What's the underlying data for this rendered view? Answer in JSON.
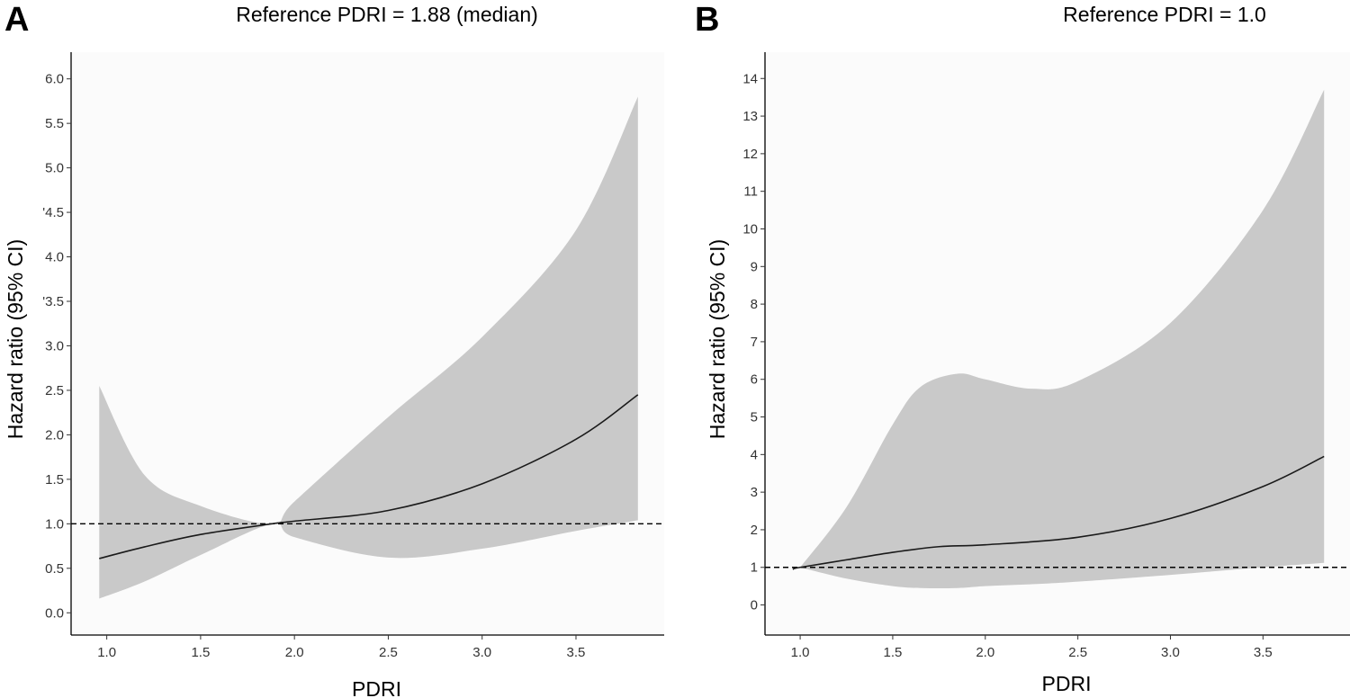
{
  "chart_data": [
    {
      "type": "line",
      "panel_label": "A",
      "title": "Reference PDRI = 1.88 (median)",
      "xlabel": "PDRI",
      "ylabel": "Hazard ratio (95% CI)",
      "xlim": [
        0.81,
        3.97
      ],
      "ylim": [
        -0.25,
        6.3
      ],
      "x_ticks": [
        1.0,
        1.5,
        2.0,
        2.5,
        3.0,
        3.5
      ],
      "x_tick_labels": [
        "1.0",
        "1.5",
        "2.0",
        "2.5",
        "3.0",
        "3.5"
      ],
      "y_ticks": [
        0.0,
        0.5,
        1.0,
        1.5,
        2.0,
        2.5,
        3.0,
        3.5,
        4.0,
        4.5,
        5.0,
        5.5,
        6.0
      ],
      "y_tick_labels": [
        "0.0",
        "0.5",
        "1.0",
        "1.5",
        "2.0",
        "2.5",
        "3.0",
        "'3.5",
        "4.0",
        "'4.5",
        "5.0",
        "5.5",
        "6.0"
      ],
      "reference_line": 1.0,
      "grid": false,
      "series": [
        {
          "kind": "line",
          "x": [
            0.96,
            1.2,
            1.5,
            1.88,
            2.0,
            2.5,
            3.0,
            3.5,
            3.83
          ],
          "y": [
            0.61,
            0.74,
            0.88,
            1.0,
            1.03,
            1.15,
            1.45,
            1.95,
            2.45
          ]
        },
        {
          "kind": "band",
          "x": [
            0.96,
            1.2,
            1.5,
            1.88,
            2.0,
            2.5,
            3.0,
            3.5,
            3.83
          ],
          "lower": [
            0.16,
            0.35,
            0.65,
            1.0,
            0.85,
            0.62,
            0.72,
            0.92,
            1.04
          ],
          "upper": [
            2.55,
            1.55,
            1.2,
            1.0,
            1.25,
            2.2,
            3.1,
            4.3,
            5.8
          ]
        }
      ]
    },
    {
      "type": "line",
      "panel_label": "B",
      "title": "Reference PDRI = 1.0",
      "xlabel": "PDRI",
      "ylabel": "Hazard ratio (95% CI)",
      "xlim": [
        0.81,
        3.97
      ],
      "ylim": [
        -0.8,
        14.7
      ],
      "x_ticks": [
        1.0,
        1.5,
        2.0,
        2.5,
        3.0,
        3.5
      ],
      "x_tick_labels": [
        "1.0",
        "1.5",
        "2.0",
        "2.5",
        "3.0",
        "3.5"
      ],
      "y_ticks": [
        0,
        1,
        2,
        3,
        4,
        5,
        6,
        7,
        8,
        9,
        10,
        11,
        12,
        13,
        14
      ],
      "y_tick_labels": [
        "0",
        "1",
        "2",
        "3",
        "4",
        "5",
        "6",
        "7",
        "8",
        "9",
        "10",
        "11",
        "12",
        "13",
        "14"
      ],
      "reference_line": 1.0,
      "grid": false,
      "series": [
        {
          "kind": "line",
          "x": [
            0.96,
            1.0,
            1.25,
            1.5,
            1.75,
            2.0,
            2.5,
            3.0,
            3.5,
            3.83
          ],
          "y": [
            0.95,
            1.0,
            1.2,
            1.4,
            1.55,
            1.6,
            1.8,
            2.3,
            3.15,
            3.95
          ]
        },
        {
          "kind": "band",
          "x": [
            1.0,
            1.25,
            1.5,
            1.65,
            1.85,
            2.0,
            2.25,
            2.5,
            3.0,
            3.5,
            3.83
          ],
          "lower": [
            1.0,
            0.7,
            0.5,
            0.45,
            0.45,
            0.5,
            0.55,
            0.62,
            0.8,
            1.0,
            1.12
          ],
          "upper": [
            1.0,
            2.6,
            4.8,
            5.8,
            6.15,
            6.0,
            5.75,
            5.95,
            7.5,
            10.5,
            13.7
          ]
        }
      ]
    }
  ]
}
